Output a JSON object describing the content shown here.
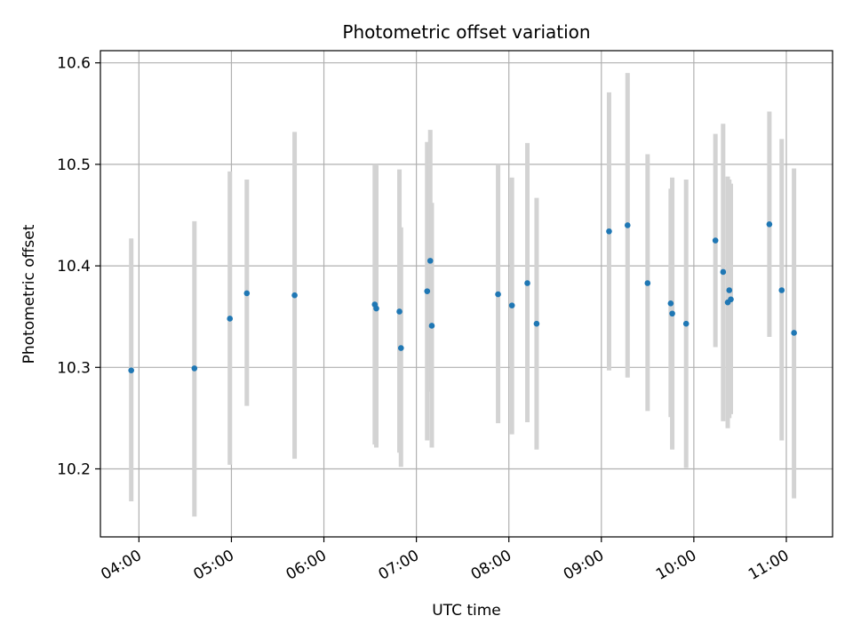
{
  "chart_data": {
    "type": "scatter",
    "title": "Photometric offset variation",
    "xlabel": "UTC time",
    "ylabel": "Photometric offset",
    "x_unit": "hours UTC",
    "xlim": [
      "03:35",
      "11:30"
    ],
    "ylim": [
      10.133,
      10.612
    ],
    "x_ticks": [
      "04:00",
      "05:00",
      "06:00",
      "07:00",
      "08:00",
      "09:00",
      "10:00",
      "11:00"
    ],
    "y_ticks": [
      "10.2",
      "10.3",
      "10.4",
      "10.5",
      "10.6"
    ],
    "grid": true,
    "legend": "none",
    "colors": {
      "point": "#1f77b4",
      "error_bar": "#d3d3d3",
      "grid": "#b0b0b0",
      "axis": "#000000"
    },
    "points": [
      {
        "x": "03:55",
        "y": 10.297,
        "ylow": 10.168,
        "yhigh": 10.427
      },
      {
        "x": "04:36",
        "y": 10.299,
        "ylow": 10.153,
        "yhigh": 10.444
      },
      {
        "x": "04:59",
        "y": 10.348,
        "ylow": 10.204,
        "yhigh": 10.493
      },
      {
        "x": "05:10",
        "y": 10.373,
        "ylow": 10.262,
        "yhigh": 10.485
      },
      {
        "x": "05:41",
        "y": 10.371,
        "ylow": 10.21,
        "yhigh": 10.532
      },
      {
        "x": "06:33",
        "y": 10.362,
        "ylow": 10.224,
        "yhigh": 10.5
      },
      {
        "x": "06:34",
        "y": 10.358,
        "ylow": 10.221,
        "yhigh": 10.499
      },
      {
        "x": "06:49",
        "y": 10.355,
        "ylow": 10.216,
        "yhigh": 10.495
      },
      {
        "x": "06:50",
        "y": 10.319,
        "ylow": 10.202,
        "yhigh": 10.438
      },
      {
        "x": "07:07",
        "y": 10.375,
        "ylow": 10.228,
        "yhigh": 10.522
      },
      {
        "x": "07:09",
        "y": 10.405,
        "ylow": 10.276,
        "yhigh": 10.534
      },
      {
        "x": "07:10",
        "y": 10.341,
        "ylow": 10.221,
        "yhigh": 10.462
      },
      {
        "x": "07:53",
        "y": 10.372,
        "ylow": 10.245,
        "yhigh": 10.5
      },
      {
        "x": "08:02",
        "y": 10.361,
        "ylow": 10.234,
        "yhigh": 10.487
      },
      {
        "x": "08:12",
        "y": 10.383,
        "ylow": 10.246,
        "yhigh": 10.521
      },
      {
        "x": "08:18",
        "y": 10.343,
        "ylow": 10.219,
        "yhigh": 10.467
      },
      {
        "x": "09:05",
        "y": 10.434,
        "ylow": 10.297,
        "yhigh": 10.571
      },
      {
        "x": "09:17",
        "y": 10.44,
        "ylow": 10.29,
        "yhigh": 10.59
      },
      {
        "x": "09:30",
        "y": 10.383,
        "ylow": 10.257,
        "yhigh": 10.51
      },
      {
        "x": "09:45",
        "y": 10.363,
        "ylow": 10.251,
        "yhigh": 10.476
      },
      {
        "x": "09:46",
        "y": 10.353,
        "ylow": 10.219,
        "yhigh": 10.487
      },
      {
        "x": "09:55",
        "y": 10.343,
        "ylow": 10.201,
        "yhigh": 10.485
      },
      {
        "x": "10:14",
        "y": 10.425,
        "ylow": 10.32,
        "yhigh": 10.53
      },
      {
        "x": "10:19",
        "y": 10.394,
        "ylow": 10.247,
        "yhigh": 10.54
      },
      {
        "x": "10:22",
        "y": 10.364,
        "ylow": 10.24,
        "yhigh": 10.488
      },
      {
        "x": "10:23",
        "y": 10.376,
        "ylow": 10.25,
        "yhigh": 10.485
      },
      {
        "x": "10:24",
        "y": 10.367,
        "ylow": 10.254,
        "yhigh": 10.481
      },
      {
        "x": "10:49",
        "y": 10.441,
        "ylow": 10.33,
        "yhigh": 10.552
      },
      {
        "x": "10:57",
        "y": 10.376,
        "ylow": 10.228,
        "yhigh": 10.525
      },
      {
        "x": "11:05",
        "y": 10.334,
        "ylow": 10.171,
        "yhigh": 10.496
      }
    ]
  }
}
